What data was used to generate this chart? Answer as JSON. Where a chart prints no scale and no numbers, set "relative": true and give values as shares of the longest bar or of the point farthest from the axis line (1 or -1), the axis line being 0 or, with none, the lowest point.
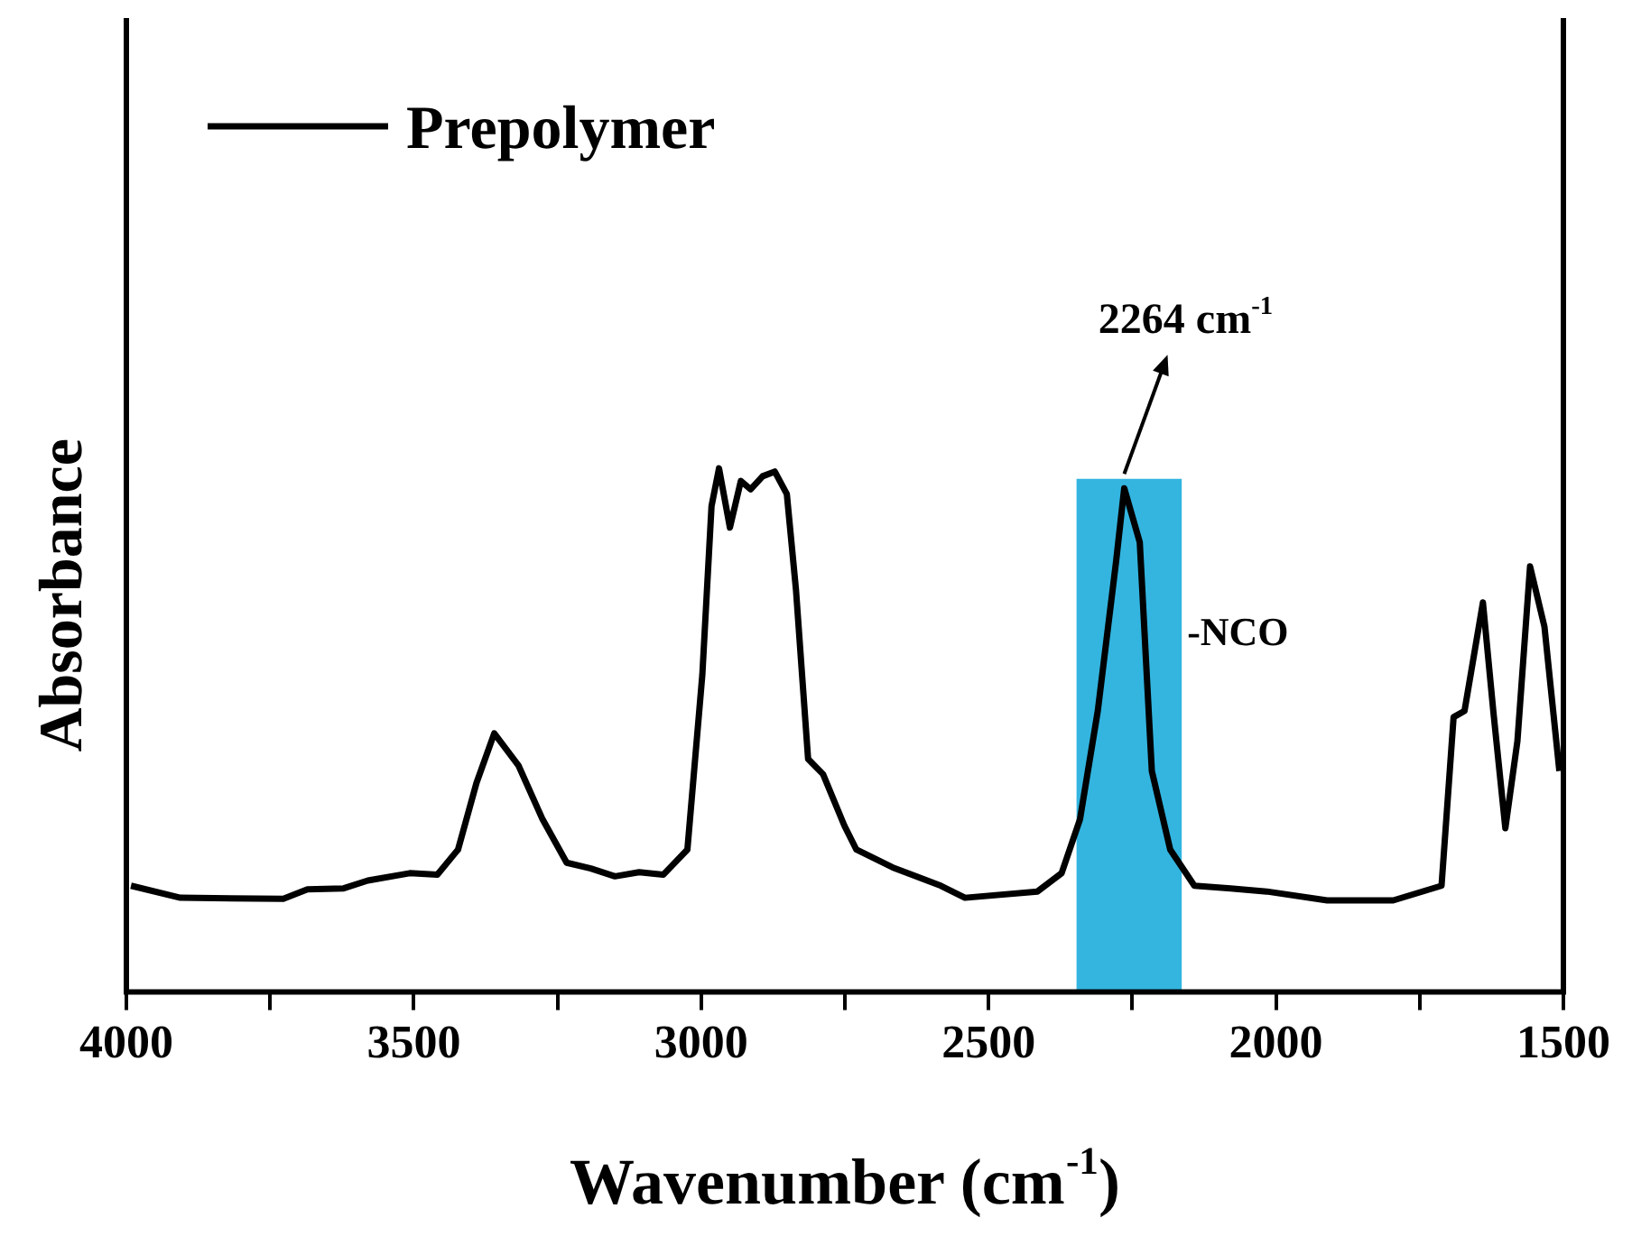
{
  "chart_data": {
    "type": "line",
    "xlabel": "Wavenumber (cm$^{-1}$)",
    "ylabel": "Absorbance",
    "relative": true,
    "xlim": [
      4000,
      1500
    ],
    "xticks": [
      4000,
      {
        "value": 3750,
        "label": null
      },
      3500,
      {
        "value": 3250,
        "label": null
      },
      3000,
      {
        "value": 2750,
        "label": null
      },
      2500,
      {
        "value": 2250,
        "label": null
      },
      2000,
      {
        "value": 1750,
        "label": null
      },
      1500
    ],
    "grid": false,
    "legend": "top left",
    "marker": "none",
    "line_style": "solid",
    "series": [
      {
        "name": "Prepolymer",
        "color": "#000000",
        "x": [
          3992,
          3906,
          3727,
          3685,
          3622,
          3580,
          3507,
          3459,
          3423,
          3391,
          3360,
          3318,
          3276,
          3234,
          3192,
          3150,
          3108,
          3066,
          3024,
          2998,
          2982,
          2969,
          2950,
          2931,
          2914,
          2893,
          2872,
          2851,
          2835,
          2814,
          2788,
          2751,
          2730,
          2667,
          2583,
          2541,
          2415,
          2373,
          2341,
          2310,
          2278,
          2264,
          2237,
          2216,
          2184,
          2142,
          2079,
          2016,
          1911,
          1796,
          1712,
          1691,
          1672,
          1640,
          1622,
          1601,
          1580,
          1558,
          1533,
          1507
        ],
        "values": [
          0.203,
          0.18,
          0.178,
          0.196,
          0.198,
          0.213,
          0.227,
          0.224,
          0.272,
          0.399,
          0.494,
          0.433,
          0.33,
          0.247,
          0.236,
          0.221,
          0.229,
          0.224,
          0.272,
          0.606,
          0.928,
          1,
          0.887,
          0.976,
          0.96,
          0.985,
          0.994,
          0.951,
          0.767,
          0.445,
          0.416,
          0.318,
          0.272,
          0.238,
          0.203,
          0.18,
          0.192,
          0.227,
          0.33,
          0.537,
          0.824,
          0.962,
          0.859,
          0.422,
          0.272,
          0.203,
          0.198,
          0.192,
          0.175,
          0.175,
          0.203,
          0.525,
          0.537,
          0.744,
          0.537,
          0.313,
          0.479,
          0.813,
          0.698,
          0.422
        ]
      }
    ],
    "bands": [
      {
        "axis": "x",
        "from": 2347,
        "to": 2164,
        "label": "-NCO",
        "color": "#33b5e0"
      }
    ],
    "annotations": [
      {
        "text": "2264 cm$^{-1}$",
        "x": 2264,
        "y": 0.962
      }
    ]
  }
}
